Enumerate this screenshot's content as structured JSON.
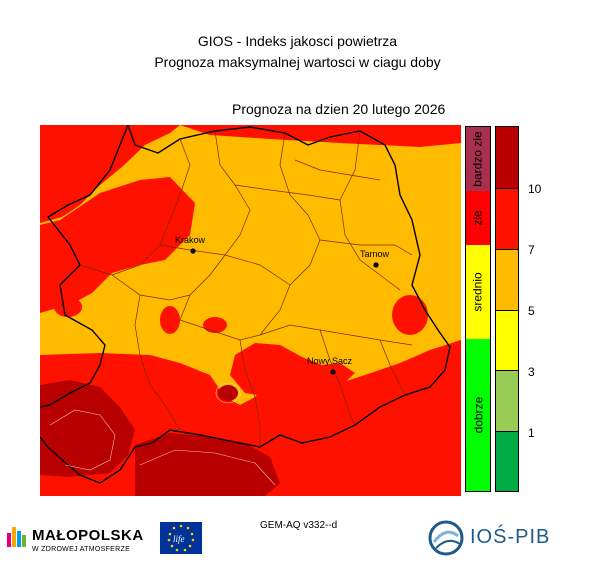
{
  "header": {
    "title_line1": "GIOS - Indeks jakosci powietrza",
    "title_line2": "Prognoza maksymalnej wartosci w ciagu doby",
    "forecast_label": "Prognoza na dzien  20 lutego 2026"
  },
  "map": {
    "cities": [
      {
        "name": "Krakow"
      },
      {
        "name": "Tarnow"
      },
      {
        "name": "Nowy Sacz"
      }
    ],
    "colors": {
      "orange": "#ffbb00",
      "red": "#ff1100",
      "dark_red": "#b80000"
    }
  },
  "legend_categories": [
    {
      "label": "bardzo zle",
      "color": "#a8304e"
    },
    {
      "label": "zle",
      "color": "#ff0000"
    },
    {
      "label": "srednio",
      "color": "#ffff00"
    },
    {
      "label": "dobrze",
      "color": "#00ff00"
    }
  ],
  "legend_scale": {
    "colors": [
      "#b80000",
      "#ff1100",
      "#ffbb00",
      "#ffff00",
      "#99cc55",
      "#00aa44"
    ],
    "ticks": [
      "10",
      "7",
      "5",
      "3",
      "1"
    ]
  },
  "footer": {
    "model": "GEM-AQ v332--d",
    "malopolska_name": "MAŁOPOLSKA",
    "malopolska_tagline": "W ZDROWEJ ATMOSFERZE",
    "life_text": "life",
    "ios_name": "IOŚ-PIB"
  }
}
